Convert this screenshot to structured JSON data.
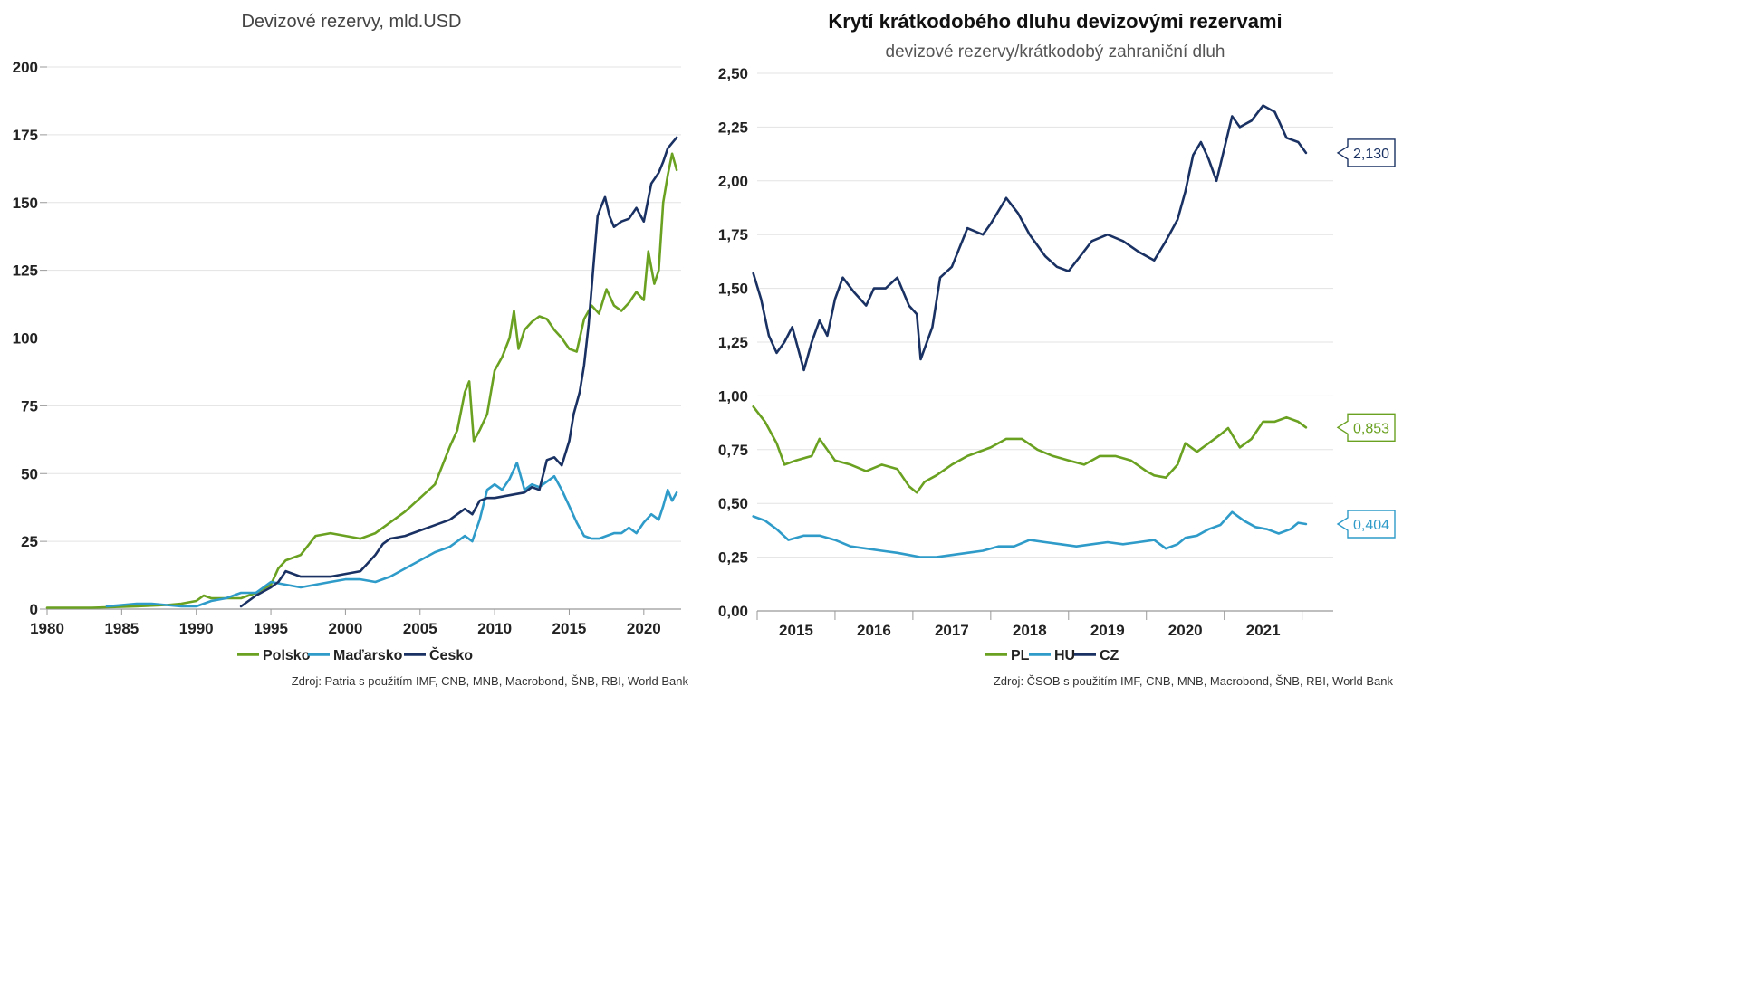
{
  "chart_data": [
    {
      "type": "line",
      "title": "Devizové rezervy, mld.USD",
      "xlabel": "",
      "ylabel": "",
      "xlim": [
        1980,
        2022.5
      ],
      "ylim": [
        0,
        200
      ],
      "x_ticks": [
        1980,
        1985,
        1990,
        1995,
        2000,
        2005,
        2010,
        2015,
        2020
      ],
      "x_tick_labels": [
        "1980",
        "1985",
        "1990",
        "1995",
        "2000",
        "2005",
        "2010",
        "2015",
        "2020"
      ],
      "y_ticks": [
        0,
        25,
        50,
        75,
        100,
        125,
        150,
        175,
        200
      ],
      "y_tick_labels": [
        "0",
        "25",
        "50",
        "75",
        "100",
        "125",
        "150",
        "175",
        "200"
      ],
      "grid": true,
      "legend_position": "bottom-center",
      "source": "Zdroj: Patria s použitím IMF, CNB, MNB, Macrobond, ŠNB, RBI, World Bank",
      "series": [
        {
          "name": "Polsko",
          "color": "#6aa121",
          "x": [
            1980,
            1983,
            1986,
            1988,
            1989,
            1990,
            1990.5,
            1991,
            1992,
            1993,
            1994,
            1995,
            1995.5,
            1996,
            1997,
            1998,
            1999,
            2000,
            2001,
            2002,
            2003,
            2004,
            2005,
            2006,
            2007,
            2007.5,
            2008,
            2008.3,
            2008.6,
            2009,
            2009.5,
            2010,
            2010.5,
            2011,
            2011.3,
            2011.6,
            2012,
            2012.5,
            2013,
            2013.5,
            2014,
            2014.5,
            2015,
            2015.5,
            2016,
            2016.5,
            2017,
            2017.5,
            2018,
            2018.5,
            2019,
            2019.5,
            2020,
            2020.3,
            2020.7,
            2021,
            2021.3,
            2021.6,
            2021.9,
            2022.2
          ],
          "y": [
            0.5,
            0.5,
            1,
            1.5,
            2,
            3,
            5,
            4,
            4,
            4,
            6,
            9,
            15,
            18,
            20,
            27,
            28,
            27,
            26,
            28,
            32,
            36,
            41,
            46,
            60,
            66,
            80,
            84,
            62,
            66,
            72,
            88,
            93,
            100,
            110,
            96,
            103,
            106,
            108,
            107,
            103,
            100,
            96,
            95,
            107,
            112,
            109,
            118,
            112,
            110,
            113,
            117,
            114,
            132,
            120,
            125,
            150,
            160,
            168,
            162
          ]
        },
        {
          "name": "Maďarsko",
          "color": "#2e9bc9",
          "x": [
            1984,
            1985,
            1986,
            1987,
            1988,
            1989,
            1990,
            1991,
            1992,
            1993,
            1994,
            1995,
            1996,
            1997,
            1998,
            1999,
            2000,
            2001,
            2002,
            2003,
            2004,
            2005,
            2006,
            2007,
            2008,
            2008.5,
            2009,
            2009.5,
            2010,
            2010.5,
            2011,
            2011.5,
            2012,
            2012.5,
            2013,
            2013.5,
            2014,
            2014.5,
            2015,
            2015.5,
            2016,
            2016.5,
            2017,
            2017.5,
            2018,
            2018.5,
            2019,
            2019.5,
            2020,
            2020.5,
            2021,
            2021.3,
            2021.6,
            2021.9,
            2022.2
          ],
          "y": [
            1,
            1.5,
            2,
            2,
            1.5,
            1,
            1,
            3,
            4,
            6,
            6,
            10,
            9,
            8,
            9,
            10,
            11,
            11,
            10,
            12,
            15,
            18,
            21,
            23,
            27,
            25,
            33,
            44,
            46,
            44,
            48,
            54,
            44,
            46,
            45,
            47,
            49,
            44,
            38,
            32,
            27,
            26,
            26,
            27,
            28,
            28,
            30,
            28,
            32,
            35,
            33,
            38,
            44,
            40,
            43
          ]
        },
        {
          "name": "Česko",
          "color": "#1a3263",
          "x": [
            1993,
            1994,
            1995,
            1995.5,
            1996,
            1997,
            1998,
            1999,
            2000,
            2001,
            2002,
            2002.5,
            2003,
            2004,
            2005,
            2006,
            2007,
            2007.5,
            2008,
            2008.5,
            2009,
            2009.5,
            2010,
            2011,
            2012,
            2012.5,
            2013,
            2013.5,
            2014,
            2014.5,
            2015,
            2015.3,
            2015.7,
            2016,
            2016.3,
            2016.6,
            2016.9,
            2017.1,
            2017.4,
            2017.7,
            2018,
            2018.5,
            2019,
            2019.5,
            2020,
            2020.5,
            2021,
            2021.3,
            2021.6,
            2021.9,
            2022.2
          ],
          "y": [
            1,
            5,
            8,
            10,
            14,
            12,
            12,
            12,
            13,
            14,
            20,
            24,
            26,
            27,
            29,
            31,
            33,
            35,
            37,
            35,
            40,
            41,
            41,
            42,
            43,
            45,
            44,
            55,
            56,
            53,
            62,
            72,
            80,
            90,
            105,
            125,
            145,
            148,
            152,
            145,
            141,
            143,
            144,
            148,
            143,
            157,
            161,
            165,
            170,
            172,
            174
          ]
        }
      ]
    },
    {
      "type": "line",
      "title": "Krytí krátkodobého dluhu devizovými rezervami",
      "subtitle": "devizové rezervy/krátkodobý zahraniční dluh",
      "xlabel": "",
      "ylabel": "",
      "xlim": [
        2014.5,
        2021.9
      ],
      "ylim": [
        0,
        2.5
      ],
      "x_ticks": [
        2015,
        2016,
        2017,
        2018,
        2019,
        2020,
        2021
      ],
      "x_tick_labels": [
        "2015",
        "2016",
        "2017",
        "2018",
        "2019",
        "2020",
        "2021"
      ],
      "y_ticks": [
        0,
        0.25,
        0.5,
        0.75,
        1.0,
        1.25,
        1.5,
        1.75,
        2.0,
        2.25,
        2.5
      ],
      "y_tick_labels": [
        "0,00",
        "0,25",
        "0,50",
        "0,75",
        "1,00",
        "1,25",
        "1,50",
        "1,75",
        "2,00",
        "2,25",
        "2,50"
      ],
      "grid": true,
      "legend_position": "bottom-center",
      "source": "Zdroj: ČSOB s použitím IMF, CNB, MNB, Macrobond, ŠNB, RBI, World Bank",
      "series": [
        {
          "name": "CZ",
          "color": "#1a3263",
          "end_label": "2,130",
          "x": [
            2014.45,
            2014.55,
            2014.65,
            2014.75,
            2014.85,
            2014.95,
            2015.1,
            2015.2,
            2015.3,
            2015.4,
            2015.5,
            2015.6,
            2015.75,
            2015.9,
            2016.0,
            2016.15,
            2016.3,
            2016.45,
            2016.55,
            2016.6,
            2016.65,
            2016.75,
            2016.85,
            2017.0,
            2017.2,
            2017.4,
            2017.5,
            2017.7,
            2017.85,
            2018.0,
            2018.2,
            2018.35,
            2018.5,
            2018.65,
            2018.8,
            2019.0,
            2019.2,
            2019.4,
            2019.6,
            2019.75,
            2019.9,
            2020.0,
            2020.1,
            2020.2,
            2020.3,
            2020.4,
            2020.5,
            2020.6,
            2020.7,
            2020.85,
            2021.0,
            2021.15,
            2021.3,
            2021.45,
            2021.55
          ],
          "y": [
            1.57,
            1.45,
            1.28,
            1.2,
            1.25,
            1.32,
            1.12,
            1.25,
            1.35,
            1.28,
            1.45,
            1.55,
            1.48,
            1.42,
            1.5,
            1.5,
            1.55,
            1.42,
            1.38,
            1.17,
            1.22,
            1.32,
            1.55,
            1.6,
            1.78,
            1.75,
            1.8,
            1.92,
            1.85,
            1.75,
            1.65,
            1.6,
            1.58,
            1.65,
            1.72,
            1.75,
            1.72,
            1.67,
            1.63,
            1.72,
            1.82,
            1.95,
            2.12,
            2.18,
            2.1,
            2.0,
            2.15,
            2.3,
            2.25,
            2.28,
            2.35,
            2.32,
            2.2,
            2.18,
            2.13
          ]
        },
        {
          "name": "PL",
          "color": "#6aa121",
          "end_label": "0,853",
          "x": [
            2014.45,
            2014.6,
            2014.75,
            2014.85,
            2015.0,
            2015.2,
            2015.3,
            2015.5,
            2015.7,
            2015.9,
            2016.1,
            2016.3,
            2016.45,
            2016.55,
            2016.65,
            2016.8,
            2017.0,
            2017.2,
            2017.5,
            2017.7,
            2017.9,
            2018.1,
            2018.3,
            2018.5,
            2018.7,
            2018.9,
            2019.1,
            2019.3,
            2019.5,
            2019.6,
            2019.75,
            2019.9,
            2020.0,
            2020.15,
            2020.3,
            2020.45,
            2020.55,
            2020.7,
            2020.85,
            2021.0,
            2021.15,
            2021.3,
            2021.45,
            2021.55
          ],
          "y": [
            0.95,
            0.88,
            0.78,
            0.68,
            0.7,
            0.72,
            0.8,
            0.7,
            0.68,
            0.65,
            0.68,
            0.66,
            0.58,
            0.55,
            0.6,
            0.63,
            0.68,
            0.72,
            0.76,
            0.8,
            0.8,
            0.75,
            0.72,
            0.7,
            0.68,
            0.72,
            0.72,
            0.7,
            0.65,
            0.63,
            0.62,
            0.68,
            0.78,
            0.74,
            0.78,
            0.82,
            0.85,
            0.76,
            0.8,
            0.88,
            0.88,
            0.9,
            0.88,
            0.853
          ]
        },
        {
          "name": "HU",
          "color": "#2e9bc9",
          "end_label": "0,404",
          "x": [
            2014.45,
            2014.6,
            2014.75,
            2014.9,
            2015.1,
            2015.3,
            2015.5,
            2015.7,
            2015.9,
            2016.1,
            2016.3,
            2016.45,
            2016.6,
            2016.8,
            2017.0,
            2017.2,
            2017.4,
            2017.6,
            2017.8,
            2018.0,
            2018.2,
            2018.4,
            2018.6,
            2018.8,
            2019.0,
            2019.2,
            2019.4,
            2019.6,
            2019.75,
            2019.9,
            2020.0,
            2020.15,
            2020.3,
            2020.45,
            2020.6,
            2020.75,
            2020.9,
            2021.05,
            2021.2,
            2021.35,
            2021.45,
            2021.55
          ],
          "y": [
            0.44,
            0.42,
            0.38,
            0.33,
            0.35,
            0.35,
            0.33,
            0.3,
            0.29,
            0.28,
            0.27,
            0.26,
            0.25,
            0.25,
            0.26,
            0.27,
            0.28,
            0.3,
            0.3,
            0.33,
            0.32,
            0.31,
            0.3,
            0.31,
            0.32,
            0.31,
            0.32,
            0.33,
            0.29,
            0.31,
            0.34,
            0.35,
            0.38,
            0.4,
            0.46,
            0.42,
            0.39,
            0.38,
            0.36,
            0.38,
            0.41,
            0.404
          ]
        }
      ]
    }
  ]
}
